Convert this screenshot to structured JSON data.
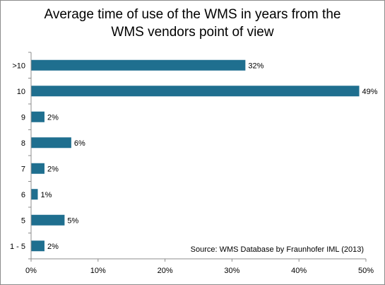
{
  "chart_data": {
    "type": "bar",
    "orientation": "horizontal",
    "title_lines": [
      "Average time of use of the WMS in years from the",
      "WMS vendors point of view"
    ],
    "categories": [
      ">10",
      "10",
      "9",
      "8",
      "7",
      "6",
      "5",
      "1 - 5"
    ],
    "values": [
      32,
      49,
      2,
      6,
      2,
      1,
      5,
      2
    ],
    "value_labels": [
      "32%",
      "49%",
      "2%",
      "6%",
      "2%",
      "1%",
      "5%",
      "2%"
    ],
    "xlim": [
      0,
      50
    ],
    "xticks": [
      0,
      10,
      20,
      30,
      40,
      50
    ],
    "xtick_labels": [
      "0%",
      "10%",
      "20%",
      "30%",
      "40%",
      "50%"
    ],
    "grid": false,
    "bar_color": "#1f6f8f",
    "annotation": "Source: WMS Database by Fraunhofer IML (2013)"
  }
}
